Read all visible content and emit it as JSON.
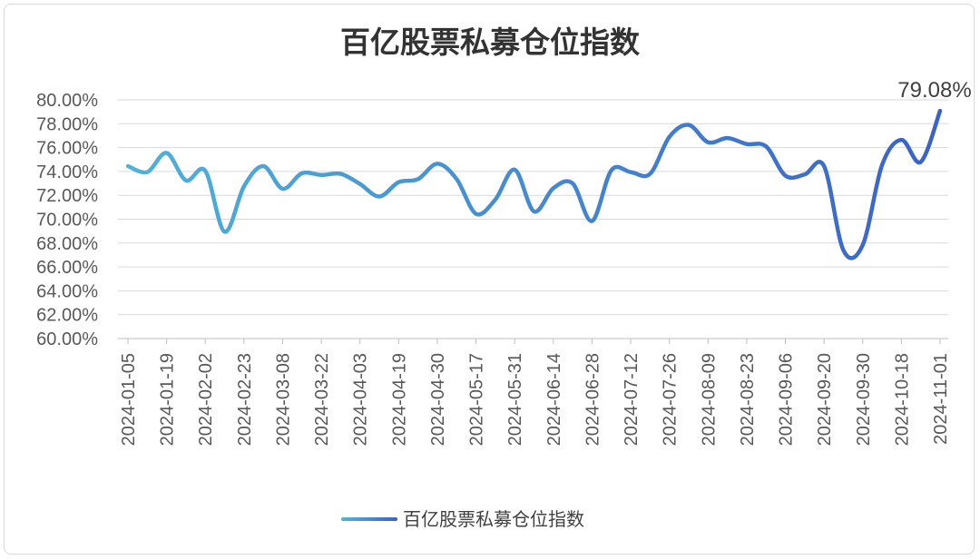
{
  "chart_data": {
    "type": "line",
    "title": "百亿股票私募仓位指数",
    "xlabel": "",
    "ylabel": "",
    "ylim": [
      0.6,
      0.8
    ],
    "y_ticks": [
      "60.00%",
      "62.00%",
      "64.00%",
      "66.00%",
      "68.00%",
      "70.00%",
      "72.00%",
      "74.00%",
      "76.00%",
      "78.00%",
      "80.00%"
    ],
    "x_tick_labels": [
      "2024-01-05",
      "2024-01-19",
      "2024-02-02",
      "2024-02-23",
      "2024-03-08",
      "2024-03-22",
      "2024-04-03",
      "2024-04-19",
      "2024-04-30",
      "2024-05-17",
      "2024-05-31",
      "2024-06-14",
      "2024-06-28",
      "2024-07-12",
      "2024-07-26",
      "2024-08-09",
      "2024-08-23",
      "2024-09-06",
      "2024-09-20",
      "2024-09-30",
      "2024-10-18",
      "2024-11-01"
    ],
    "grid": true,
    "legend_position": "bottom",
    "series": [
      {
        "name": "百亿股票私募仓位指数",
        "color_start": "#4fb3d9",
        "color_end": "#3a62c8",
        "values": [
          0.7445,
          0.7395,
          0.7555,
          0.7325,
          0.7405,
          0.6895,
          0.7275,
          0.7445,
          0.7255,
          0.7385,
          0.737,
          0.738,
          0.7295,
          0.719,
          0.731,
          0.7335,
          0.7465,
          0.7335,
          0.7045,
          0.7165,
          0.7415,
          0.7065,
          0.726,
          0.73,
          0.6985,
          0.741,
          0.7395,
          0.738,
          0.769,
          0.779,
          0.7645,
          0.768,
          0.763,
          0.761,
          0.7365,
          0.7375,
          0.7445,
          0.674,
          0.6785,
          0.7455,
          0.7665,
          0.748,
          0.7908
        ]
      }
    ],
    "data_labels": [
      {
        "index": 42,
        "text": "79.08%"
      }
    ]
  }
}
